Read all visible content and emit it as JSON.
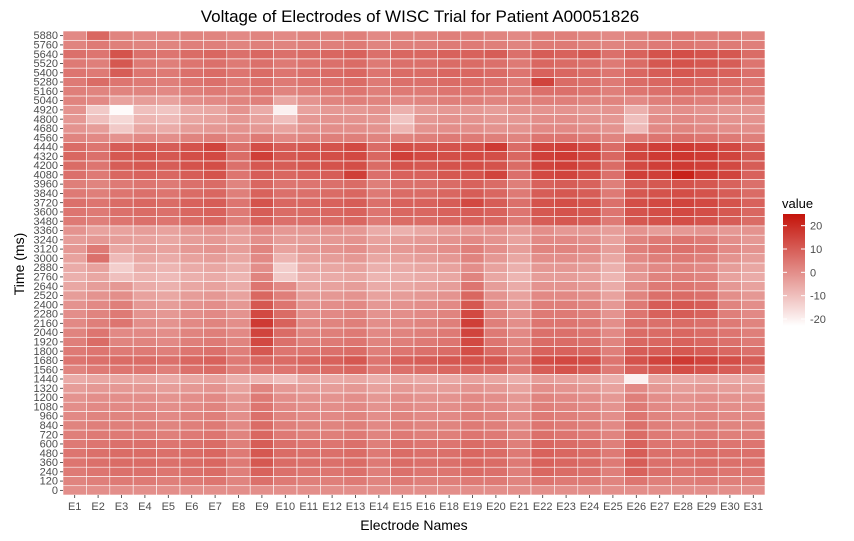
{
  "chart_data": {
    "type": "heatmap",
    "title": "Voltage of Electrodes of WISC Trial for Patient A00051826",
    "xlabel": "Electrode Names",
    "ylabel": "Time (ms)",
    "x_categories": [
      "E1",
      "E2",
      "E3",
      "E4",
      "E5",
      "E6",
      "E7",
      "E8",
      "E9",
      "E10",
      "E11",
      "E12",
      "E13",
      "E14",
      "E15",
      "E16",
      "E18",
      "E19",
      "E20",
      "E21",
      "E22",
      "E23",
      "E24",
      "E25",
      "E26",
      "E27",
      "E28",
      "E29",
      "E30",
      "E31"
    ],
    "y_ticks": [
      0,
      120,
      240,
      360,
      480,
      600,
      720,
      840,
      960,
      1080,
      1200,
      1320,
      1440,
      1560,
      1680,
      1800,
      1920,
      2040,
      2160,
      2280,
      2400,
      2520,
      2640,
      2760,
      2880,
      3000,
      3120,
      3240,
      3360,
      3480,
      3600,
      3720,
      3840,
      3960,
      4080,
      4200,
      4320,
      4440,
      4560,
      4680,
      4800,
      4920,
      5040,
      5160,
      5280,
      5400,
      5520,
      5640,
      5760,
      5880
    ],
    "y_range": [
      0,
      5880
    ],
    "legend": {
      "title": "value",
      "ticks": [
        20,
        10,
        0,
        -10,
        -20
      ],
      "range": [
        -23,
        25
      ],
      "low_color": "#ffffff",
      "high_color": "#c4130a",
      "position": "right"
    },
    "grid": false,
    "values": [
      [
        0,
        0,
        0,
        0,
        0,
        0,
        0,
        0,
        0,
        0,
        0,
        0,
        0,
        0,
        0,
        0,
        0,
        0,
        0,
        0,
        0,
        0,
        0,
        0,
        0,
        0,
        0,
        0,
        0,
        0
      ],
      [
        2,
        3,
        4,
        4,
        3,
        4,
        5,
        2,
        6,
        4,
        3,
        3,
        4,
        2,
        4,
        3,
        3,
        4,
        4,
        2,
        5,
        4,
        4,
        2,
        5,
        3,
        3,
        4,
        3,
        3
      ],
      [
        4,
        5,
        6,
        6,
        5,
        6,
        7,
        3,
        9,
        6,
        5,
        5,
        6,
        3,
        6,
        5,
        5,
        7,
        6,
        3,
        8,
        7,
        6,
        3,
        9,
        6,
        5,
        6,
        5,
        5
      ],
      [
        5,
        6,
        7,
        7,
        6,
        7,
        8,
        4,
        11,
        7,
        6,
        6,
        7,
        4,
        7,
        6,
        6,
        8,
        7,
        4,
        9,
        8,
        7,
        4,
        10,
        6,
        6,
        7,
        6,
        6
      ],
      [
        5,
        6,
        7,
        7,
        6,
        7,
        8,
        4,
        11,
        7,
        6,
        6,
        7,
        4,
        7,
        6,
        6,
        8,
        7,
        4,
        9,
        8,
        7,
        4,
        10,
        6,
        6,
        7,
        6,
        6
      ],
      [
        4,
        5,
        6,
        6,
        5,
        6,
        7,
        3,
        10,
        6,
        5,
        5,
        6,
        3,
        6,
        5,
        5,
        7,
        6,
        3,
        8,
        7,
        6,
        3,
        9,
        5,
        5,
        6,
        5,
        5
      ],
      [
        3,
        4,
        4,
        4,
        3,
        4,
        5,
        2,
        8,
        4,
        3,
        3,
        4,
        2,
        4,
        3,
        3,
        5,
        4,
        2,
        6,
        5,
        4,
        2,
        7,
        4,
        3,
        4,
        3,
        3
      ],
      [
        2,
        3,
        3,
        3,
        2,
        3,
        4,
        1,
        7,
        3,
        2,
        2,
        3,
        1,
        3,
        2,
        2,
        4,
        3,
        1,
        5,
        4,
        3,
        1,
        6,
        3,
        2,
        3,
        2,
        2
      ],
      [
        1,
        2,
        2,
        2,
        1,
        2,
        3,
        0,
        6,
        2,
        1,
        1,
        2,
        0,
        2,
        1,
        1,
        3,
        2,
        0,
        4,
        3,
        2,
        0,
        5,
        2,
        1,
        2,
        1,
        1
      ],
      [
        0,
        1,
        1,
        1,
        0,
        1,
        2,
        -1,
        5,
        1,
        0,
        0,
        1,
        -1,
        1,
        0,
        0,
        2,
        1,
        -1,
        3,
        2,
        1,
        -1,
        4,
        1,
        0,
        1,
        0,
        0
      ],
      [
        -1,
        0,
        0,
        0,
        -1,
        0,
        1,
        -2,
        4,
        0,
        -1,
        -1,
        0,
        -2,
        0,
        -1,
        -1,
        1,
        0,
        -2,
        2,
        1,
        0,
        -2,
        3,
        0,
        -1,
        0,
        -1,
        -1
      ],
      [
        -3,
        -2,
        -2,
        -2,
        -3,
        -2,
        -1,
        -4,
        2,
        -2,
        -3,
        -3,
        -2,
        -4,
        -2,
        -3,
        -3,
        -1,
        -2,
        -4,
        0,
        -1,
        -2,
        -4,
        1,
        -2,
        -3,
        -2,
        -3,
        -3
      ],
      [
        -6,
        -5,
        -5,
        -5,
        -6,
        -5,
        -4,
        -7,
        -8,
        -10,
        -6,
        -6,
        -5,
        -7,
        -5,
        -6,
        -6,
        -4,
        -5,
        -7,
        -3,
        -4,
        -5,
        -7,
        -20,
        -5,
        -6,
        -5,
        -6,
        -6
      ],
      [
        2,
        4,
        5,
        5,
        3,
        6,
        7,
        3,
        5,
        5,
        6,
        7,
        8,
        4,
        6,
        7,
        8,
        9,
        8,
        4,
        10,
        12,
        10,
        4,
        9,
        11,
        13,
        12,
        10,
        7
      ],
      [
        5,
        6,
        7,
        7,
        6,
        8,
        9,
        4,
        8,
        7,
        8,
        9,
        11,
        5,
        9,
        10,
        11,
        12,
        11,
        5,
        13,
        14,
        13,
        5,
        12,
        15,
        17,
        15,
        13,
        10
      ],
      [
        4,
        5,
        4,
        4,
        3,
        5,
        6,
        3,
        11,
        5,
        5,
        6,
        7,
        3,
        5,
        6,
        7,
        13,
        7,
        3,
        9,
        9,
        8,
        3,
        10,
        10,
        11,
        10,
        8,
        6
      ],
      [
        3,
        7,
        2,
        2,
        1,
        3,
        4,
        2,
        14,
        6,
        3,
        4,
        5,
        2,
        3,
        4,
        5,
        14,
        5,
        2,
        7,
        7,
        6,
        2,
        8,
        8,
        9,
        8,
        6,
        4
      ],
      [
        2,
        5,
        1,
        1,
        0,
        2,
        3,
        1,
        15,
        7,
        2,
        3,
        4,
        1,
        2,
        3,
        4,
        15,
        4,
        1,
        6,
        6,
        5,
        1,
        7,
        7,
        8,
        7,
        5,
        3
      ],
      [
        1,
        3,
        5,
        0,
        -1,
        1,
        2,
        0,
        17,
        9,
        1,
        2,
        3,
        0,
        1,
        2,
        3,
        16,
        3,
        0,
        5,
        5,
        4,
        0,
        6,
        6,
        7,
        6,
        4,
        2
      ],
      [
        0,
        2,
        4,
        -1,
        -2,
        0,
        1,
        -1,
        14,
        7,
        0,
        1,
        2,
        -1,
        0,
        1,
        2,
        14,
        2,
        -1,
        4,
        4,
        3,
        -1,
        5,
        9,
        10,
        9,
        3,
        1
      ],
      [
        -1,
        1,
        3,
        -2,
        -3,
        -1,
        0,
        -2,
        11,
        5,
        -1,
        0,
        1,
        -2,
        -1,
        0,
        1,
        11,
        1,
        -2,
        3,
        3,
        2,
        -2,
        4,
        10,
        11,
        10,
        2,
        0
      ],
      [
        -3,
        -1,
        0,
        -4,
        -5,
        -3,
        -2,
        -4,
        8,
        3,
        -3,
        -2,
        -1,
        -4,
        -3,
        -2,
        -1,
        8,
        -1,
        -4,
        1,
        1,
        0,
        -4,
        2,
        6,
        7,
        6,
        0,
        -2
      ],
      [
        -5,
        -3,
        -2,
        -6,
        -7,
        -5,
        -4,
        -6,
        5,
        1,
        -5,
        -4,
        -3,
        -6,
        -5,
        -4,
        -3,
        5,
        -3,
        -6,
        -1,
        -1,
        -2,
        -6,
        0,
        4,
        5,
        4,
        -2,
        -4
      ],
      [
        -7,
        -5,
        -10,
        -8,
        -9,
        -7,
        -6,
        -8,
        2,
        -12,
        -7,
        -6,
        -5,
        -8,
        -7,
        -6,
        -5,
        2,
        -5,
        -8,
        -3,
        -3,
        -4,
        -8,
        -2,
        2,
        3,
        2,
        -4,
        -6
      ],
      [
        -6,
        -4,
        -13,
        -7,
        -8,
        -6,
        -5,
        -7,
        0,
        -13,
        -6,
        -5,
        -4,
        -7,
        -6,
        -5,
        -4,
        0,
        -4,
        -7,
        -2,
        -2,
        -3,
        -7,
        -1,
        1,
        2,
        1,
        -3,
        -5
      ],
      [
        -4,
        6,
        -9,
        -5,
        -6,
        -4,
        -3,
        -5,
        1,
        -8,
        -4,
        -3,
        -2,
        -5,
        -4,
        -3,
        -2,
        2,
        -2,
        -5,
        0,
        0,
        -1,
        -5,
        1,
        3,
        4,
        3,
        -1,
        -3
      ],
      [
        -2,
        4,
        -5,
        -3,
        -4,
        -2,
        -1,
        -3,
        2,
        -4,
        -2,
        -1,
        0,
        -3,
        -2,
        -1,
        0,
        3,
        0,
        -3,
        2,
        2,
        1,
        -3,
        3,
        5,
        6,
        5,
        1,
        -1
      ],
      [
        -3,
        -2,
        -3,
        -4,
        -5,
        -3,
        -2,
        -4,
        0,
        -3,
        -3,
        -2,
        -1,
        -4,
        -3,
        -2,
        -1,
        1,
        -1,
        -4,
        1,
        1,
        0,
        -4,
        2,
        4,
        5,
        4,
        0,
        -2
      ],
      [
        -1,
        -4,
        -4,
        -3,
        -4,
        -2,
        -1,
        -3,
        1,
        -2,
        -2,
        -1,
        -2,
        -6,
        -7,
        -5,
        -3,
        -2,
        -1,
        -3,
        0,
        -2,
        -2,
        -3,
        -1,
        -3,
        -2,
        -1,
        -2,
        -1
      ],
      [
        4,
        3,
        5,
        6,
        5,
        7,
        8,
        3,
        9,
        6,
        6,
        7,
        8,
        4,
        7,
        7,
        8,
        9,
        8,
        4,
        10,
        11,
        10,
        4,
        11,
        12,
        13,
        12,
        10,
        7
      ],
      [
        5,
        4,
        6,
        7,
        6,
        8,
        9,
        4,
        10,
        7,
        7,
        8,
        9,
        5,
        8,
        8,
        9,
        10,
        9,
        5,
        11,
        12,
        11,
        5,
        12,
        13,
        14,
        13,
        11,
        8
      ],
      [
        6,
        5,
        7,
        8,
        7,
        9,
        10,
        5,
        12,
        8,
        8,
        9,
        10,
        6,
        9,
        9,
        10,
        14,
        10,
        6,
        12,
        13,
        12,
        6,
        13,
        14,
        15,
        14,
        12,
        9
      ],
      [
        4,
        3,
        5,
        6,
        5,
        7,
        8,
        3,
        9,
        6,
        6,
        7,
        8,
        4,
        7,
        7,
        8,
        10,
        8,
        4,
        10,
        11,
        10,
        4,
        11,
        12,
        13,
        12,
        10,
        7
      ],
      [
        3,
        2,
        4,
        5,
        4,
        6,
        7,
        2,
        8,
        5,
        5,
        6,
        7,
        3,
        6,
        6,
        7,
        9,
        7,
        3,
        9,
        10,
        9,
        3,
        10,
        11,
        12,
        11,
        9,
        6
      ],
      [
        6,
        4,
        8,
        9,
        8,
        10,
        12,
        5,
        10,
        8,
        9,
        10,
        16,
        6,
        9,
        9,
        11,
        12,
        15,
        6,
        14,
        15,
        13,
        6,
        16,
        16,
        22,
        17,
        15,
        9
      ],
      [
        7,
        5,
        10,
        11,
        10,
        12,
        13,
        6,
        11,
        10,
        11,
        12,
        13,
        7,
        12,
        11,
        12,
        13,
        12,
        7,
        15,
        16,
        14,
        7,
        14,
        16,
        17,
        16,
        14,
        10
      ],
      [
        8,
        6,
        11,
        12,
        11,
        13,
        14,
        7,
        16,
        11,
        12,
        13,
        14,
        8,
        16,
        14,
        13,
        14,
        13,
        8,
        16,
        17,
        15,
        8,
        15,
        17,
        18,
        17,
        15,
        11
      ],
      [
        7,
        5,
        10,
        11,
        10,
        12,
        15,
        6,
        13,
        10,
        11,
        12,
        14,
        7,
        13,
        12,
        12,
        13,
        17,
        7,
        15,
        16,
        14,
        7,
        14,
        16,
        17,
        16,
        14,
        10
      ],
      [
        2,
        1,
        -1,
        1,
        0,
        2,
        3,
        1,
        4,
        1,
        2,
        3,
        3,
        2,
        2,
        3,
        4,
        4,
        3,
        2,
        5,
        5,
        4,
        2,
        4,
        5,
        6,
        5,
        4,
        3
      ],
      [
        -1,
        -3,
        -12,
        -5,
        -6,
        -3,
        -2,
        -1,
        -2,
        -4,
        -1,
        0,
        0,
        -1,
        -8,
        -1,
        0,
        0,
        -1,
        -1,
        1,
        1,
        0,
        -1,
        -9,
        1,
        2,
        1,
        0,
        0
      ],
      [
        -2,
        -10,
        -15,
        -8,
        -9,
        -5,
        -4,
        -2,
        -4,
        -10,
        -2,
        -1,
        -1,
        -2,
        -11,
        -2,
        -1,
        -1,
        -2,
        -2,
        0,
        0,
        -1,
        -2,
        -10,
        0,
        1,
        0,
        -1,
        -1
      ],
      [
        -1,
        -12,
        -22,
        -10,
        -11,
        -6,
        -5,
        -1,
        -6,
        -20,
        -4,
        -2,
        -2,
        -1,
        -7,
        -3,
        -2,
        -2,
        -3,
        -1,
        -1,
        -1,
        -2,
        -1,
        -7,
        -1,
        0,
        -1,
        -2,
        -2
      ],
      [
        2,
        1,
        -4,
        -3,
        -4,
        0,
        1,
        2,
        3,
        -5,
        -1,
        2,
        3,
        2,
        1,
        2,
        3,
        3,
        2,
        2,
        3,
        3,
        2,
        2,
        1,
        3,
        4,
        3,
        2,
        2
      ],
      [
        3,
        2,
        2,
        2,
        1,
        3,
        4,
        3,
        5,
        2,
        3,
        4,
        5,
        3,
        4,
        4,
        5,
        5,
        4,
        3,
        6,
        6,
        5,
        3,
        5,
        6,
        7,
        6,
        5,
        4
      ],
      [
        4,
        7,
        5,
        4,
        3,
        5,
        6,
        4,
        6,
        4,
        5,
        6,
        7,
        4,
        6,
        6,
        7,
        7,
        6,
        4,
        15,
        7,
        6,
        4,
        7,
        8,
        9,
        8,
        7,
        5
      ],
      [
        5,
        4,
        10,
        5,
        4,
        6,
        7,
        5,
        7,
        5,
        6,
        7,
        8,
        5,
        7,
        7,
        8,
        8,
        7,
        5,
        9,
        8,
        7,
        5,
        8,
        10,
        11,
        10,
        9,
        6
      ],
      [
        4,
        3,
        11,
        4,
        3,
        5,
        6,
        4,
        6,
        4,
        5,
        6,
        7,
        4,
        6,
        6,
        7,
        7,
        6,
        4,
        8,
        7,
        6,
        4,
        7,
        11,
        12,
        11,
        10,
        5
      ],
      [
        6,
        5,
        12,
        6,
        5,
        7,
        8,
        6,
        8,
        6,
        7,
        8,
        9,
        6,
        8,
        8,
        9,
        9,
        10,
        6,
        10,
        9,
        11,
        6,
        9,
        12,
        13,
        12,
        11,
        7
      ],
      [
        2,
        4,
        3,
        2,
        2,
        3,
        3,
        2,
        3,
        2,
        3,
        3,
        4,
        2,
        3,
        3,
        4,
        4,
        3,
        2,
        4,
        4,
        3,
        2,
        3,
        4,
        5,
        4,
        4,
        3
      ],
      [
        1,
        8,
        2,
        1,
        1,
        2,
        2,
        1,
        2,
        1,
        2,
        2,
        3,
        1,
        2,
        2,
        3,
        3,
        2,
        1,
        3,
        3,
        2,
        1,
        2,
        3,
        4,
        3,
        3,
        2
      ]
    ]
  }
}
